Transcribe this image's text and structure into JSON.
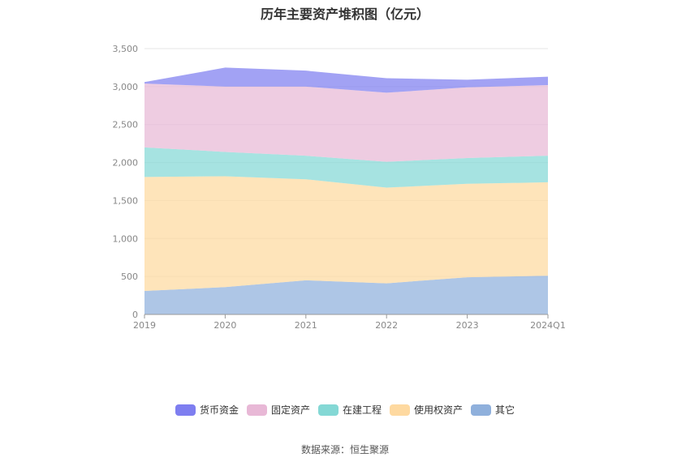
{
  "chart_data": {
    "type": "area",
    "title": "历年主要资产堆积图（亿元）",
    "categories": [
      "2019",
      "2020",
      "2021",
      "2022",
      "2023",
      "2024Q1"
    ],
    "ylim": [
      0,
      3500
    ],
    "yticks": [
      "0",
      "500",
      "1,000",
      "1,500",
      "2,000",
      "2,500",
      "3,000",
      "3,500"
    ],
    "ytick_values": [
      0,
      500,
      1000,
      1500,
      2000,
      2500,
      3000,
      3500
    ],
    "grid": true,
    "legend_position": "bottom",
    "series": [
      {
        "name": "其它",
        "color": "#8fb0dc",
        "values": [
          310,
          360,
          450,
          410,
          490,
          510
        ]
      },
      {
        "name": "使用权资产",
        "color": "#fed9a0",
        "values": [
          1500,
          1460,
          1330,
          1260,
          1230,
          1230
        ]
      },
      {
        "name": "在建工程",
        "color": "#84d8d5",
        "values": [
          390,
          320,
          310,
          340,
          340,
          350
        ]
      },
      {
        "name": "固定资产",
        "color": "#e8b8d6",
        "values": [
          840,
          860,
          910,
          910,
          930,
          930
        ]
      },
      {
        "name": "货币资金",
        "color": "#7e7ef0",
        "values": [
          20,
          250,
          210,
          190,
          100,
          110
        ]
      }
    ]
  },
  "legend_order": [
    "货币资金",
    "固定资产",
    "在建工程",
    "使用权资产",
    "其它"
  ],
  "source_text": "数据来源：恒生聚源"
}
